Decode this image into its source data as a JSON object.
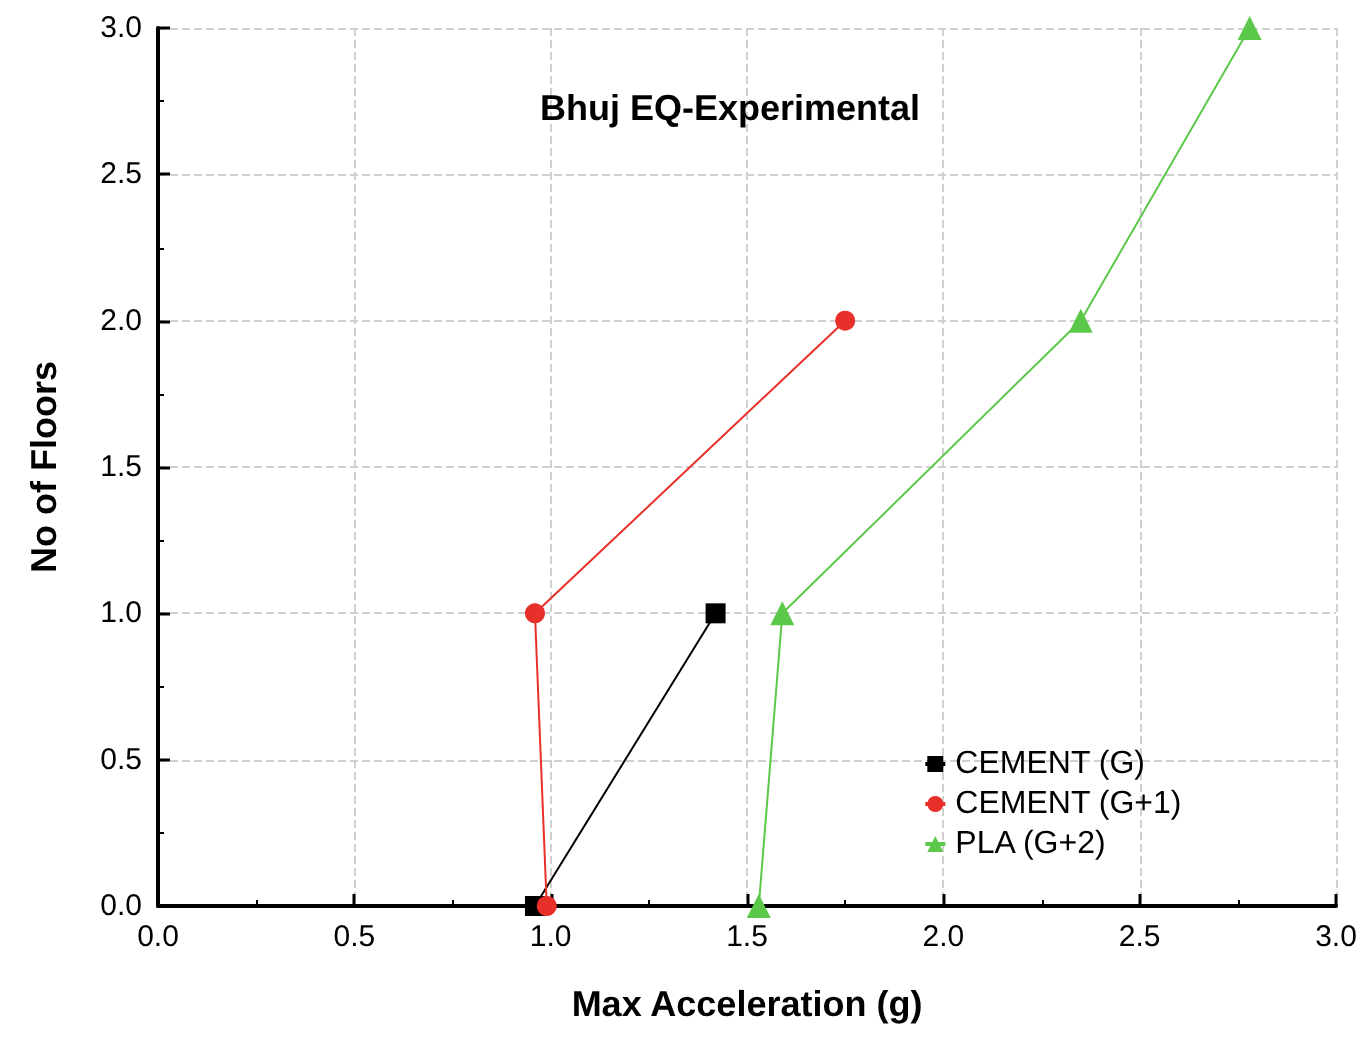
{
  "chart_data": {
    "type": "line",
    "title": "Bhuj EQ-Experimental",
    "xlabel": "Max Acceleration (g)",
    "ylabel": "No of Floors",
    "xlim": [
      0,
      3
    ],
    "xticks": [
      {
        "value": 0,
        "label": "0.0"
      },
      0.5,
      {
        "value": 1,
        "label": "1.0"
      },
      1.5,
      {
        "value": 2,
        "label": "2.0"
      },
      2.5,
      {
        "value": 3,
        "label": "3.0"
      }
    ],
    "ylim": [
      0,
      3
    ],
    "yticks": [
      {
        "value": 0,
        "label": "0.0"
      },
      0.5,
      {
        "value": 1,
        "label": "1.0"
      },
      1.5,
      {
        "value": 2,
        "label": "2.0"
      },
      2.5,
      {
        "value": 3,
        "label": "3.0"
      }
    ],
    "grid": true,
    "legend": "bottom right",
    "line_style": "solid",
    "series": [
      {
        "name": "CEMENT (G)",
        "color": "#000000",
        "marker": "square",
        "x": [
          0.96,
          1.42
        ],
        "values": [
          0,
          1
        ]
      },
      {
        "name": "CEMENT (G+1)",
        "color": "#e8302a",
        "marker": "circle",
        "x": [
          0.99,
          0.96,
          1.75
        ],
        "values": [
          0,
          1,
          2
        ]
      },
      {
        "name": "PLA (G+2)",
        "color": "#5cc84a",
        "marker": "triangle",
        "x": [
          1.53,
          1.59,
          2.35,
          2.78
        ],
        "values": [
          0,
          1,
          2,
          3
        ]
      }
    ]
  }
}
